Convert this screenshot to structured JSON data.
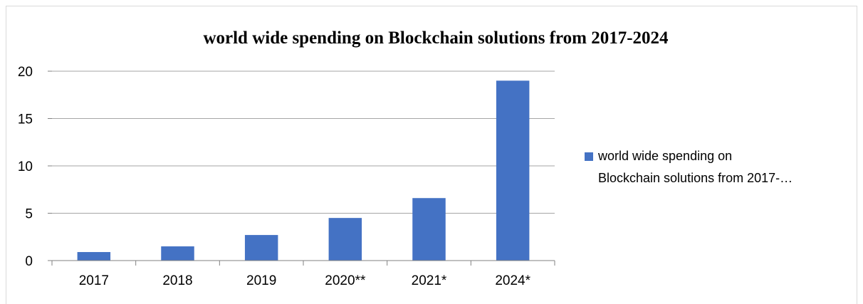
{
  "chart_data": {
    "type": "bar",
    "title": "world wide spending on Blockchain solutions from 2017-2024",
    "categories": [
      "2017",
      "2018",
      "2019",
      "2020**",
      "2021*",
      "2024*"
    ],
    "series": [
      {
        "name": "world wide spending on Blockchain solutions from 2017-2024",
        "values": [
          0.9,
          1.5,
          2.7,
          4.5,
          6.6,
          19.0
        ]
      }
    ],
    "legend": {
      "placement": "right",
      "lines": [
        "world wide spending on",
        "Blockchain solutions from 2017-…"
      ]
    },
    "ylim": [
      0,
      20
    ],
    "yticks": [
      0,
      5,
      10,
      15,
      20
    ],
    "grid": true,
    "colors": {
      "bar": "#4472C4",
      "grid": "#a6a6a6",
      "axis": "#808080"
    }
  }
}
